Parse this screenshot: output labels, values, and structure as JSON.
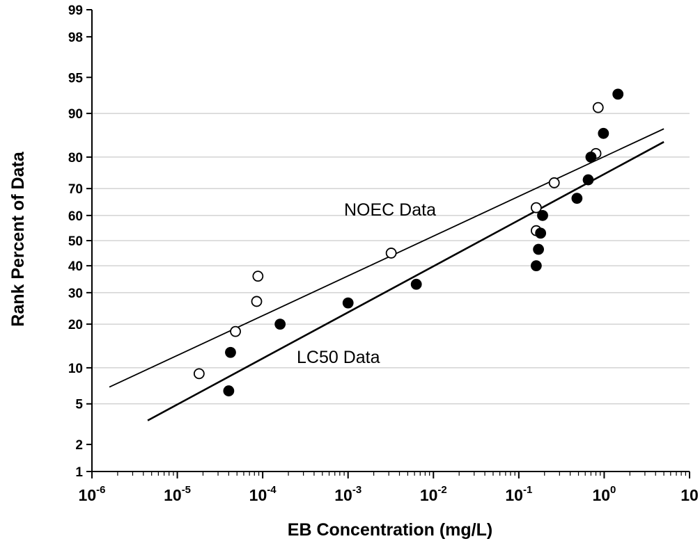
{
  "chart_data": {
    "type": "scatter",
    "xlabel": "EB Concentration (mg/L)",
    "ylabel": "Rank Percent of Data",
    "x_scale": "log",
    "y_scale": "probability",
    "xlim": [
      1e-06,
      10
    ],
    "ylim": [
      1,
      99
    ],
    "x_ticks": [
      {
        "base": "10",
        "exp": "-6",
        "value": 1e-06
      },
      {
        "base": "10",
        "exp": "-5",
        "value": 1e-05
      },
      {
        "base": "10",
        "exp": "-4",
        "value": 0.0001
      },
      {
        "base": "10",
        "exp": "-3",
        "value": 0.001
      },
      {
        "base": "10",
        "exp": "-2",
        "value": 0.01
      },
      {
        "base": "10",
        "exp": "-1",
        "value": 0.1
      },
      {
        "base": "10",
        "exp": "0",
        "value": 1
      },
      {
        "base": "10",
        "exp": "",
        "value": 10
      }
    ],
    "y_ticks": [
      "1",
      "2",
      "5",
      "10",
      "20",
      "30",
      "40",
      "50",
      "60",
      "70",
      "80",
      "90",
      "95",
      "98",
      "99"
    ],
    "y_gridlines": [
      5,
      10,
      20,
      30,
      40,
      50,
      60,
      70,
      80,
      90
    ],
    "grid": "horizontal",
    "legend": "none",
    "series": [
      {
        "name": "NOEC Data",
        "marker": "open-circle",
        "points": [
          {
            "x": 1.8e-05,
            "y": 9
          },
          {
            "x": 4.8e-05,
            "y": 18
          },
          {
            "x": 8.5e-05,
            "y": 27
          },
          {
            "x": 8.8e-05,
            "y": 36
          },
          {
            "x": 0.0032,
            "y": 45
          },
          {
            "x": 0.16,
            "y": 54
          },
          {
            "x": 0.16,
            "y": 63
          },
          {
            "x": 0.26,
            "y": 72
          },
          {
            "x": 0.8,
            "y": 81
          },
          {
            "x": 0.85,
            "y": 91
          }
        ],
        "fit_line": {
          "x": [
            1.6e-06,
            5
          ],
          "y": [
            7,
            87
          ]
        }
      },
      {
        "name": "LC50 Data",
        "marker": "filled-circle",
        "points": [
          {
            "x": 4e-05,
            "y": 6.5
          },
          {
            "x": 4.2e-05,
            "y": 13
          },
          {
            "x": 0.00016,
            "y": 20
          },
          {
            "x": 0.001,
            "y": 26.5
          },
          {
            "x": 0.0063,
            "y": 33
          },
          {
            "x": 0.16,
            "y": 40
          },
          {
            "x": 0.17,
            "y": 46.5
          },
          {
            "x": 0.18,
            "y": 53
          },
          {
            "x": 0.19,
            "y": 60
          },
          {
            "x": 0.48,
            "y": 66.5
          },
          {
            "x": 0.65,
            "y": 73
          },
          {
            "x": 0.7,
            "y": 80
          },
          {
            "x": 0.98,
            "y": 86
          },
          {
            "x": 1.45,
            "y": 93
          }
        ],
        "fit_line": {
          "x": [
            4.5e-06,
            5
          ],
          "y": [
            3.5,
            84
          ]
        }
      }
    ],
    "annotations": [
      "NOEC Data",
      "LC50 Data"
    ]
  }
}
